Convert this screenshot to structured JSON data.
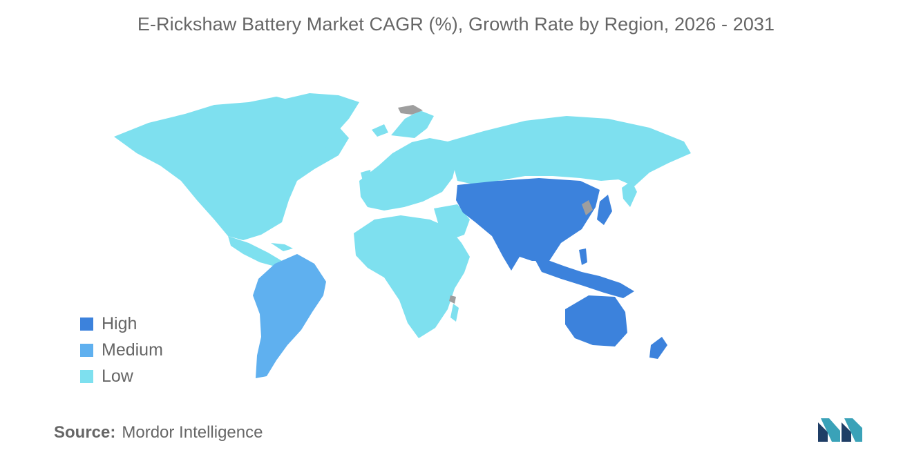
{
  "title": "E-Rickshaw Battery Market CAGR (%), Growth Rate by Region, 2026 - 2031",
  "legend": [
    {
      "label": "High",
      "color": "#3c82dc"
    },
    {
      "label": "Medium",
      "color": "#5fb0ef"
    },
    {
      "label": "Low",
      "color": "#7ee0ef"
    }
  ],
  "regions": [
    {
      "name": "North America",
      "level": "Low"
    },
    {
      "name": "South America",
      "level": "Medium"
    },
    {
      "name": "Europe",
      "level": "Low"
    },
    {
      "name": "Middle East and Africa",
      "level": "Low"
    },
    {
      "name": "Asia Pacific",
      "level": "High"
    }
  ],
  "colors": {
    "no_data": "#9e9e9e"
  },
  "source": {
    "key": "Source:",
    "value": "Mordor Intelligence"
  },
  "logo": {
    "name": "mordor-intelligence-logo",
    "colors": [
      "#1f3e66",
      "#3aa2b8"
    ]
  }
}
